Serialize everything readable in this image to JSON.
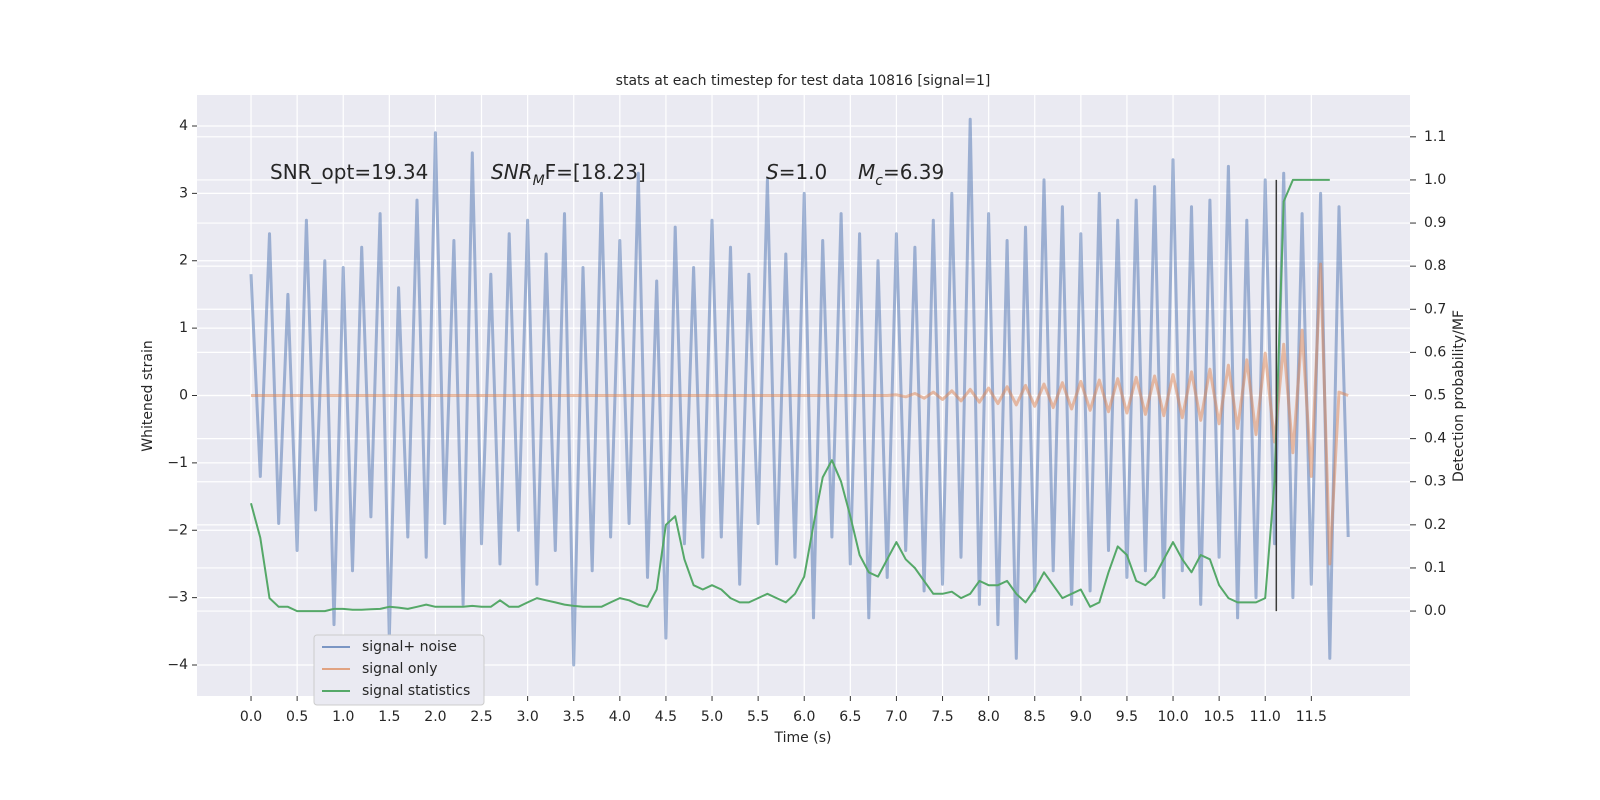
{
  "chart_data": {
    "type": "line",
    "title": "stats at each timestep for test data 10816 [signal=1]",
    "xlabel": "Time (s)",
    "ylabel": "Whitened strain",
    "y2label": "Detection probability/MF",
    "xlim": [
      -0.586,
      12.57
    ],
    "ylim": [
      -4.46,
      4.46
    ],
    "y2lim": [
      -0.197,
      1.197
    ],
    "grid": true,
    "legend": "lower left",
    "background": "#eaeaf2",
    "xticks": [
      {
        "value": 0,
        "label": "0.0"
      },
      0.5,
      {
        "value": 1,
        "label": "1.0"
      },
      1.5,
      {
        "value": 2,
        "label": "2.0"
      },
      2.5,
      {
        "value": 3,
        "label": "3.0"
      },
      3.5,
      {
        "value": 4,
        "label": "4.0"
      },
      4.5,
      {
        "value": 5,
        "label": "5.0"
      },
      5.5,
      {
        "value": 6,
        "label": "6.0"
      },
      6.5,
      {
        "value": 7,
        "label": "7.0"
      },
      7.5,
      {
        "value": 8,
        "label": "8.0"
      },
      8.5,
      {
        "value": 9,
        "label": "9.0"
      },
      9.5,
      {
        "value": 10,
        "label": "10.0"
      },
      10.5,
      {
        "value": 11,
        "label": "11.0"
      },
      11.5
    ],
    "yticks": [
      {
        "value": -4,
        "label": "−4"
      },
      {
        "value": -3,
        "label": "−3"
      },
      {
        "value": -2,
        "label": "−2"
      },
      {
        "value": -1,
        "label": "−1"
      },
      0,
      1,
      2,
      3,
      4
    ],
    "y2ticks": [
      {
        "value": 0,
        "label": "0.0"
      },
      0.1,
      0.2,
      0.3,
      0.4,
      0.5,
      0.6,
      0.7,
      0.8,
      0.9,
      {
        "value": 1,
        "label": "1.0"
      },
      1.1
    ],
    "annotations": [
      {
        "parts": [
          {
            "text": "SNR_opt=19.34"
          }
        ]
      },
      {
        "parts": [
          {
            "text": "SNR",
            "italic": true
          },
          {
            "text": "M",
            "italic": true,
            "sub": true
          },
          {
            "text": "F=[18.23]"
          }
        ]
      },
      {
        "parts": [
          {
            "text": "S",
            "italic": true
          },
          {
            "text": "=1.0"
          }
        ]
      },
      {
        "parts": [
          {
            "text": "M",
            "italic": true
          },
          {
            "text": "c",
            "italic": true,
            "sub": true
          },
          {
            "text": "=6.39"
          }
        ]
      }
    ],
    "vline": {
      "x": 11.12,
      "y2": [
        0,
        1
      ],
      "color": "#3a3a3a"
    },
    "x": [
      0,
      0.1,
      0.2,
      0.3,
      0.4,
      0.5,
      0.6,
      0.7,
      0.8,
      0.9,
      1,
      1.1,
      1.2,
      1.3,
      1.4,
      1.5,
      1.6,
      1.7,
      1.8,
      1.9,
      2,
      2.1,
      2.2,
      2.3,
      2.4,
      2.5,
      2.6,
      2.7,
      2.8,
      2.9,
      3,
      3.1,
      3.2,
      3.3,
      3.4,
      3.5,
      3.6,
      3.7,
      3.8,
      3.9,
      4,
      4.1,
      4.2,
      4.3,
      4.4,
      4.5,
      4.6,
      4.7,
      4.8,
      4.9,
      5,
      5.1,
      5.2,
      5.3,
      5.4,
      5.5,
      5.6,
      5.7,
      5.8,
      5.9,
      6,
      6.1,
      6.2,
      6.3,
      6.4,
      6.5,
      6.6,
      6.7,
      6.8,
      6.9,
      7,
      7.1,
      7.2,
      7.3,
      7.4,
      7.5,
      7.6,
      7.7,
      7.8,
      7.9,
      8,
      8.1,
      8.2,
      8.3,
      8.4,
      8.5,
      8.6,
      8.7,
      8.8,
      8.9,
      9,
      9.1,
      9.2,
      9.3,
      9.4,
      9.5,
      9.6,
      9.7,
      9.8,
      9.9,
      10,
      10.1,
      10.2,
      10.3,
      10.4,
      10.5,
      10.6,
      10.7,
      10.8,
      10.9,
      11,
      11.1,
      11.2,
      11.3,
      11.4,
      11.5,
      11.6,
      11.7,
      11.8,
      11.9
    ],
    "series": [
      {
        "name": "signal+ noise",
        "color": "#4c72b0",
        "opacity": 0.5,
        "width": 3,
        "values": [
          1.8,
          -1.2,
          2.4,
          -1.9,
          1.5,
          -2.3,
          2.6,
          -1.7,
          2.0,
          -3.4,
          1.9,
          -2.6,
          2.2,
          -1.8,
          2.7,
          -3.6,
          1.6,
          -2.1,
          2.9,
          -2.4,
          3.9,
          -1.9,
          2.3,
          -3.1,
          3.6,
          -2.2,
          1.8,
          -2.5,
          2.4,
          -2.0,
          2.6,
          -2.8,
          2.1,
          -2.3,
          2.7,
          -4.0,
          1.9,
          -2.6,
          3.0,
          -2.1,
          2.3,
          -1.9,
          3.3,
          -2.7,
          1.7,
          -3.6,
          2.5,
          -2.2,
          1.9,
          -2.4,
          2.6,
          -2.1,
          2.2,
          -2.8,
          1.8,
          -1.9,
          3.2,
          -2.5,
          2.1,
          -2.4,
          3.0,
          -3.3,
          2.3,
          -2.1,
          2.7,
          -2.5,
          2.4,
          -3.3,
          2.0,
          -2.7,
          2.4,
          -2.3,
          2.2,
          -2.9,
          2.6,
          -2.8,
          3.0,
          -2.4,
          4.1,
          -3.1,
          2.7,
          -3.4,
          2.3,
          -3.9,
          2.5,
          -2.9,
          3.2,
          -2.6,
          2.8,
          -3.1,
          2.4,
          -2.9,
          3.0,
          -2.3,
          2.6,
          -2.7,
          2.9,
          -2.6,
          3.1,
          -3.0,
          3.5,
          -2.6,
          2.8,
          -3.1,
          2.9,
          -2.4,
          3.4,
          -3.3,
          2.6,
          -3.0,
          3.2,
          -2.2,
          3.3,
          -3.0,
          2.7,
          -2.8,
          3.0,
          -3.9,
          2.8,
          -2.1
        ]
      },
      {
        "name": "signal only",
        "color": "#dd8452",
        "opacity": 0.5,
        "width": 3,
        "values": [
          0,
          0,
          0,
          0,
          0,
          0,
          0,
          0,
          0,
          0,
          0,
          0,
          0,
          0,
          0,
          0,
          0,
          0,
          0,
          0,
          0,
          0,
          0,
          0,
          0,
          0,
          0,
          0,
          0,
          0,
          0,
          0,
          0,
          0,
          0,
          0,
          0,
          0,
          0,
          0,
          0,
          0,
          0,
          0,
          0,
          0,
          0,
          0,
          0,
          0,
          0,
          0,
          0,
          0,
          0,
          0,
          0,
          0,
          0,
          0,
          0,
          0,
          0,
          0,
          0,
          0,
          0,
          0,
          0,
          0,
          0.01,
          -0.02,
          0.03,
          -0.04,
          0.05,
          -0.06,
          0.07,
          -0.08,
          0.09,
          -0.1,
          0.11,
          -0.12,
          0.13,
          -0.14,
          0.15,
          -0.16,
          0.17,
          -0.18,
          0.19,
          -0.2,
          0.21,
          -0.22,
          0.23,
          -0.24,
          0.25,
          -0.26,
          0.27,
          -0.28,
          0.29,
          -0.3,
          0.31,
          -0.33,
          0.35,
          -0.37,
          0.39,
          -0.42,
          0.45,
          -0.49,
          0.53,
          -0.58,
          0.63,
          -0.69,
          0.76,
          -0.85,
          0.97,
          -1.2,
          1.95,
          -2.5,
          0.05,
          0
        ]
      },
      {
        "name": "signal statistics",
        "color": "#55a868",
        "opacity": 1,
        "width": 2,
        "axis": "y2",
        "values": [
          0.25,
          0.17,
          0.03,
          0.01,
          0.01,
          0,
          0,
          0,
          0,
          0.005,
          0.005,
          0.003,
          0.003,
          0.004,
          0.005,
          0.01,
          0.008,
          0.005,
          0.01,
          0.015,
          0.01,
          0.01,
          0.01,
          0.01,
          0.012,
          0.01,
          0.01,
          0.025,
          0.01,
          0.01,
          0.02,
          0.03,
          0.025,
          0.02,
          0.015,
          0.012,
          0.01,
          0.01,
          0.01,
          0.02,
          0.03,
          0.025,
          0.015,
          0.01,
          0.05,
          0.2,
          0.22,
          0.12,
          0.06,
          0.05,
          0.06,
          0.05,
          0.03,
          0.02,
          0.02,
          0.03,
          0.04,
          0.03,
          0.02,
          0.04,
          0.08,
          0.2,
          0.31,
          0.35,
          0.3,
          0.22,
          0.13,
          0.09,
          0.08,
          0.12,
          0.16,
          0.12,
          0.1,
          0.07,
          0.04,
          0.04,
          0.045,
          0.03,
          0.04,
          0.07,
          0.06,
          0.06,
          0.07,
          0.04,
          0.02,
          0.05,
          0.09,
          0.06,
          0.03,
          0.04,
          0.05,
          0.01,
          0.02,
          0.09,
          0.15,
          0.13,
          0.07,
          0.06,
          0.08,
          0.12,
          0.16,
          0.12,
          0.09,
          0.13,
          0.12,
          0.06,
          0.03,
          0.02,
          0.02,
          0.02,
          0.03,
          0.3,
          0.95,
          1.0,
          1.0,
          1.0,
          1.0,
          1.0,
          null,
          null
        ]
      }
    ]
  }
}
